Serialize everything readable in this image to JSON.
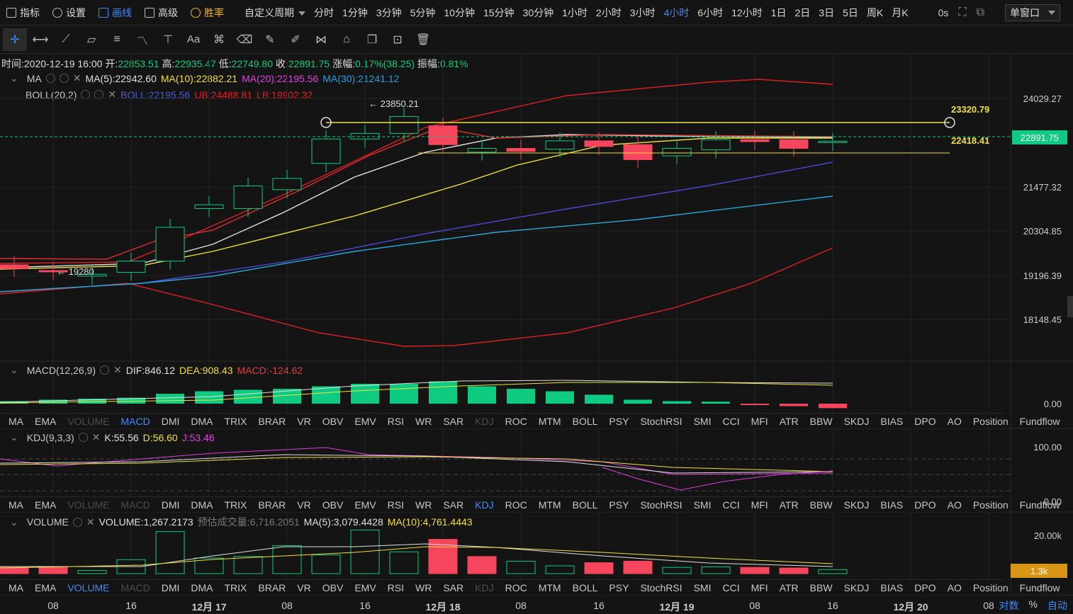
{
  "toolbar": {
    "indicator": "指标",
    "settings": "设置",
    "draw": "画线",
    "advanced": "高级",
    "winrate": "胜率",
    "custom_period": "自定义周期",
    "periods": [
      "分时",
      "1分钟",
      "3分钟",
      "5分钟",
      "10分钟",
      "15分钟",
      "30分钟",
      "1小时",
      "2小时",
      "3小时",
      "4小时",
      "6小时",
      "12小时",
      "1日",
      "2日",
      "3日",
      "5日",
      "周K",
      "月K"
    ],
    "active_period": "4小时",
    "countdown": "0s",
    "window_mode": "单窗口"
  },
  "drawtools": {
    "text_tool": "Aa"
  },
  "ohlc": {
    "time_label": "时间:",
    "time": "2020-12-19 16:00",
    "open_label": "开:",
    "open": "22853.51",
    "high_label": "高:",
    "high": "22935.47",
    "low_label": "低:",
    "low": "22749.80",
    "close_label": "收:",
    "close": "22891.75",
    "change_label": "涨幅:",
    "change": "0.17%(38.25)",
    "amp_label": "振幅:",
    "amp": "0.81%"
  },
  "ma_legend": {
    "name": "MA",
    "ma5": "MA(5):22942.60",
    "ma10": "MA(10):22882.21",
    "ma20": "MA(20):22195.56",
    "ma30": "MA(30):21241.12"
  },
  "boll_legend": {
    "name": "BOLL(20,2)",
    "boll": "BOLL:22195.56",
    "ub": "UB:24488.81",
    "lb": "LB:19902.32"
  },
  "main_axis": [
    "24029.27",
    "21477.32",
    "20304.85",
    "19196.39",
    "18148.45"
  ],
  "annotations": {
    "high_mark": "← 23850.21",
    "low_mark": "← 19280",
    "hline_top": "23320.79",
    "hline_bottom": "22418.41"
  },
  "price_tags": {
    "current": "22891.75",
    "volume": "1.3k"
  },
  "macd_legend": {
    "name": "MACD(12,26,9)",
    "dif": "DIF:846.12",
    "dea": "DEA:908.43",
    "macd": "MACD:-124.62"
  },
  "macd_axis": [
    "0.00"
  ],
  "kdj_legend": {
    "name": "KDJ(9,3,3)",
    "k": "K:55.56",
    "d": "D:56.60",
    "j": "J:53.46"
  },
  "kdj_axis": [
    "100.00",
    "0.00"
  ],
  "vol_legend": {
    "name": "VOLUME",
    "vol": "VOLUME:1,267.2173",
    "est_label": "预估成交量:",
    "est": "6,716.2051",
    "ma5": "MA(5):3,079.4428",
    "ma10": "MA(10):4,761.4443"
  },
  "vol_axis": [
    "20.00k"
  ],
  "indicator_tabs": [
    "MA",
    "EMA",
    "VOLUME",
    "MACD",
    "DMI",
    "DMA",
    "TRIX",
    "BRAR",
    "VR",
    "OBV",
    "EMV",
    "RSI",
    "WR",
    "SAR",
    "KDJ",
    "ROC",
    "MTM",
    "BOLL",
    "PSY",
    "StochRSI",
    "SMI",
    "CCI",
    "MFI",
    "ATR",
    "BBW",
    "SKDJ",
    "BIAS",
    "DPO",
    "AO",
    "Position",
    "Fundflow"
  ],
  "x_axis": [
    "08",
    "16",
    "12月 17",
    "08",
    "16",
    "12月 18",
    "08",
    "16",
    "12月 19",
    "08",
    "16",
    "12月 20",
    "08"
  ],
  "bottom_right": {
    "log": "对数",
    "pct": "%",
    "auto": "自动"
  },
  "colors": {
    "up": "#0ecb81",
    "down": "#f6465d",
    "ma5": "#e0e0e0",
    "ma10": "#f0e040",
    "ma20": "#4a4ad8",
    "ma30": "#2aa8d8",
    "ub": "#e02020",
    "accent": "#3d8bfd"
  },
  "chart_data": {
    "type": "candlestick",
    "candles": [
      {
        "o": 19600,
        "c": 19500
      },
      {
        "o": 19450,
        "c": 19420
      },
      {
        "o": 19300,
        "c": 19350
      },
      {
        "o": 19400,
        "c": 19700
      },
      {
        "o": 19700,
        "c": 20600
      },
      {
        "o": 21100,
        "c": 21200
      },
      {
        "o": 21100,
        "c": 21700
      },
      {
        "o": 21600,
        "c": 21900
      },
      {
        "o": 22300,
        "c": 22950
      },
      {
        "o": 22950,
        "c": 23100
      },
      {
        "o": 23100,
        "c": 23550
      },
      {
        "o": 23300,
        "c": 22800
      },
      {
        "o": 22600,
        "c": 22700
      },
      {
        "o": 22700,
        "c": 22620
      },
      {
        "o": 22680,
        "c": 22900
      },
      {
        "o": 22900,
        "c": 22750
      },
      {
        "o": 22800,
        "c": 22400
      },
      {
        "o": 22500,
        "c": 22700
      },
      {
        "o": 22660,
        "c": 22930
      },
      {
        "o": 22930,
        "c": 22880
      },
      {
        "o": 22930,
        "c": 22700
      },
      {
        "o": 22853,
        "c": 22891
      }
    ],
    "volume": [
      {
        "v": 2,
        "up": false
      },
      {
        "v": 2,
        "up": false
      },
      {
        "v": 1,
        "up": true
      },
      {
        "v": 4.5,
        "up": true
      },
      {
        "v": 13.5,
        "up": true
      },
      {
        "v": 5,
        "up": true
      },
      {
        "v": 5.5,
        "up": true
      },
      {
        "v": 9,
        "up": true
      },
      {
        "v": 6,
        "up": true
      },
      {
        "v": 14,
        "up": true
      },
      {
        "v": 7,
        "up": true
      },
      {
        "v": 11,
        "up": false
      },
      {
        "v": 5.5,
        "up": false
      },
      {
        "v": 4,
        "up": true
      },
      {
        "v": 2.5,
        "up": true
      },
      {
        "v": 3.5,
        "up": false
      },
      {
        "v": 4,
        "up": false
      },
      {
        "v": 2,
        "up": true
      },
      {
        "v": 2.2,
        "up": true
      },
      {
        "v": 2,
        "up": false
      },
      {
        "v": 1.8,
        "up": false
      },
      {
        "v": 1.3,
        "up": true
      }
    ],
    "macd_hist": [
      0.5,
      0.8,
      1.0,
      1.2,
      2,
      2.5,
      2.8,
      3,
      3.5,
      4,
      4,
      4.5,
      3.5,
      3,
      2.5,
      1.8,
      0.8,
      0.5,
      0.4,
      -0.2,
      -0.5,
      -0.9
    ]
  }
}
